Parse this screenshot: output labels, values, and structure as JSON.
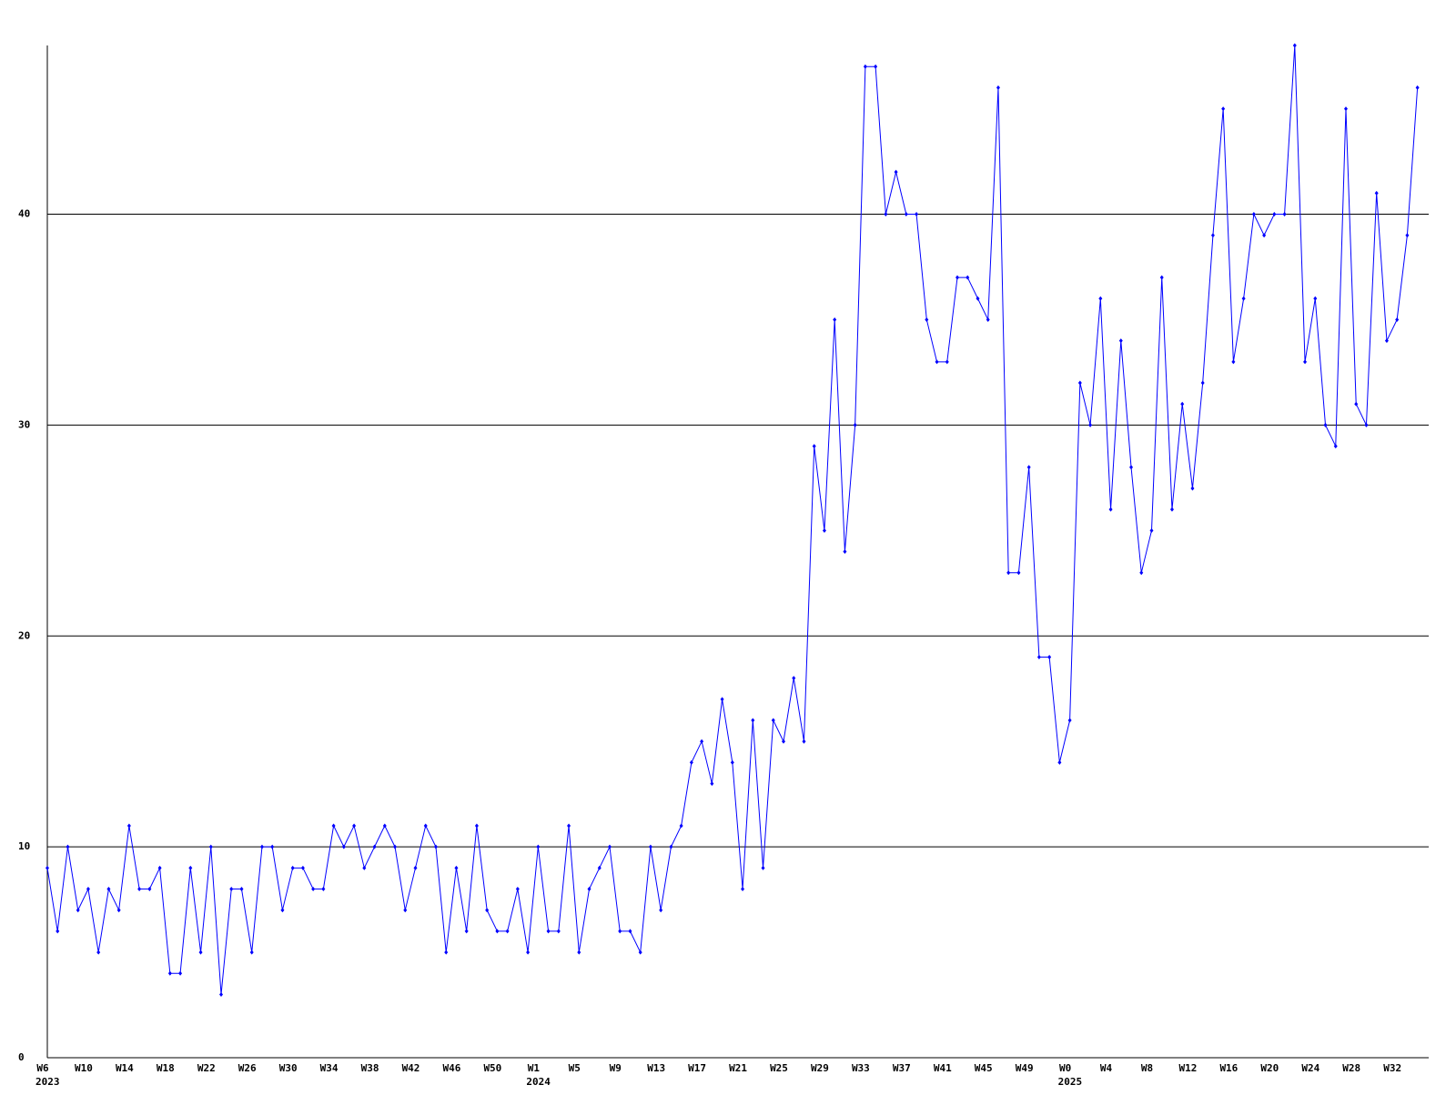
{
  "chart_data": {
    "type": "line",
    "categories": [
      "W6",
      null,
      null,
      null,
      "W10",
      null,
      null,
      null,
      "W14",
      null,
      null,
      null,
      "W18",
      null,
      null,
      null,
      "W22",
      null,
      null,
      null,
      "W26",
      null,
      null,
      null,
      "W30",
      null,
      null,
      null,
      "W34",
      null,
      null,
      null,
      "W38",
      null,
      null,
      null,
      "W42",
      null,
      null,
      null,
      "W46",
      null,
      null,
      null,
      "W50",
      null,
      null,
      null,
      "W1",
      null,
      null,
      null,
      "W5",
      null,
      null,
      null,
      "W9",
      null,
      null,
      null,
      "W13",
      null,
      null,
      null,
      "W17",
      null,
      null,
      null,
      "W21",
      null,
      null,
      null,
      "W25",
      null,
      null,
      null,
      "W29",
      null,
      null,
      null,
      "W33",
      null,
      null,
      null,
      "W37",
      null,
      null,
      null,
      "W41",
      null,
      null,
      null,
      "W45",
      null,
      null,
      null,
      "W49",
      null,
      null,
      null,
      "W0",
      null,
      null,
      null,
      "W4",
      null,
      null,
      null,
      "W8",
      null,
      null,
      null,
      "W12",
      null,
      null,
      null,
      "W16",
      null,
      null,
      null,
      "W20",
      null,
      null,
      null,
      "W24",
      null,
      null,
      null,
      "W28",
      null,
      null,
      null,
      "W32",
      null,
      null
    ],
    "years": [
      "2023",
      null,
      null,
      null,
      null,
      null,
      null,
      null,
      null,
      null,
      null,
      null,
      null,
      null,
      null,
      null,
      null,
      null,
      null,
      null,
      null,
      null,
      null,
      null,
      null,
      null,
      null,
      null,
      null,
      null,
      null,
      null,
      null,
      null,
      null,
      null,
      null,
      null,
      null,
      null,
      null,
      null,
      null,
      null,
      null,
      null,
      null,
      null,
      "2024",
      null,
      null,
      null,
      null,
      null,
      null,
      null,
      null,
      null,
      null,
      null,
      null,
      null,
      null,
      null,
      null,
      null,
      null,
      null,
      null,
      null,
      null,
      null,
      null,
      null,
      null,
      null,
      null,
      null,
      null,
      null,
      null,
      null,
      null,
      null,
      null,
      null,
      null,
      null,
      null,
      null,
      null,
      null,
      null,
      null,
      null,
      null,
      null,
      null,
      null,
      null,
      "2025",
      null,
      null,
      null,
      null,
      null,
      null,
      null,
      null,
      null,
      null,
      null,
      null,
      null,
      null,
      null,
      null,
      null,
      null,
      null,
      null,
      null,
      null,
      null,
      null,
      null,
      null,
      null,
      null,
      null,
      null,
      null,
      null,
      null,
      null
    ],
    "series": [
      {
        "color": "#0000ff",
        "values": [
          9,
          6,
          10,
          7,
          8,
          5,
          8,
          7,
          11,
          8,
          8,
          9,
          4,
          4,
          9,
          5,
          10,
          3,
          8,
          8,
          5,
          10,
          10,
          7,
          9,
          9,
          8,
          8,
          11,
          10,
          11,
          9,
          10,
          11,
          10,
          7,
          9,
          11,
          10,
          5,
          9,
          6,
          11,
          7,
          6,
          6,
          8,
          5,
          10,
          6,
          6,
          11,
          5,
          8,
          9,
          10,
          6,
          6,
          5,
          10,
          7,
          10,
          11,
          14,
          15,
          13,
          17,
          14,
          8,
          16,
          9,
          16,
          15,
          18,
          15,
          29,
          25,
          35,
          24,
          30,
          47,
          47,
          40,
          42,
          40,
          40,
          35,
          33,
          33,
          37,
          37,
          36,
          35,
          46,
          23,
          23,
          28,
          19,
          19,
          14,
          16,
          32,
          30,
          36,
          26,
          34,
          28,
          23,
          25,
          37,
          26,
          31,
          27,
          32,
          39,
          45,
          33,
          36,
          40,
          39,
          40,
          40,
          48,
          33,
          36,
          30,
          29,
          45,
          31,
          30,
          41,
          34,
          35,
          39,
          46
        ]
      }
    ],
    "ylim": [
      0,
      48
    ],
    "yticks": [
      0,
      10,
      20,
      30,
      40
    ],
    "grid": true
  }
}
